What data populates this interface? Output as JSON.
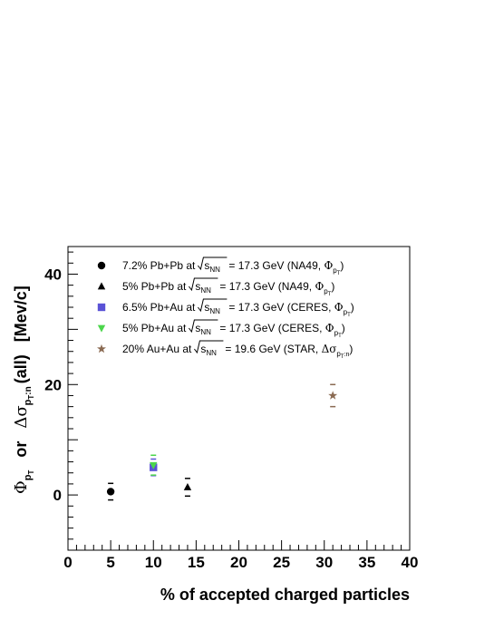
{
  "chart_data": {
    "type": "scatter",
    "xlabel": "% of accepted charged particles",
    "ylabel": "Φ_{p_T}   or   Δσ_{p_T:n}(all)   [Mev/c]",
    "xlim": [
      0,
      40
    ],
    "ylim": [
      -10,
      45
    ],
    "x_ticks": [
      0,
      5,
      10,
      15,
      20,
      25,
      30,
      35,
      40
    ],
    "y_ticks": [
      0,
      20,
      40
    ],
    "grid": false,
    "legend_position": "top-left",
    "series": [
      {
        "name": "7.2% Pb+Pb at √s_NN = 17.3 GeV (NA49, Φ_pT)",
        "marker": "circle",
        "color": "#000000",
        "points": [
          {
            "x": 5,
            "y": 0.6,
            "err": 1.5
          }
        ]
      },
      {
        "name": "5% Pb+Pb at √s_NN = 17.3 GeV (NA49, Φ_pT)",
        "marker": "triangle-up",
        "color": "#000000",
        "points": [
          {
            "x": 14,
            "y": 1.4,
            "err": 1.6
          }
        ]
      },
      {
        "name": "6.5% Pb+Au at √s_NN = 17.3 GeV (CERES, Φ_pT)",
        "marker": "square",
        "color": "#5a52d6",
        "points": [
          {
            "x": 10,
            "y": 5.0,
            "err": 1.5
          }
        ]
      },
      {
        "name": "5% Pb+Au at √s_NN = 17.3 GeV (CERES, Φ_pT)",
        "marker": "triangle-down",
        "color": "#4cd64c",
        "points": [
          {
            "x": 10,
            "y": 5.4,
            "err": 1.8
          }
        ]
      },
      {
        "name": "20% Au+Au at √s_NN = 19.6 GeV (STAR, Δσ_pT:n)",
        "marker": "star",
        "color": "#8a6a52",
        "points": [
          {
            "x": 31,
            "y": 18.0,
            "err": 2.0
          }
        ]
      }
    ],
    "legend": [
      {
        "prefix": "7.2% Pb+Pb at",
        "energy": "= 17.3 GeV (NA49,",
        "meas": "Φ",
        "sub": "p",
        "subsub": "T",
        "suffix": ")"
      },
      {
        "prefix": "5% Pb+Pb at",
        "energy": "= 17.3 GeV (NA49,",
        "meas": "Φ",
        "sub": "p",
        "subsub": "T",
        "suffix": ")"
      },
      {
        "prefix": "6.5% Pb+Au at",
        "energy": "= 17.3 GeV (CERES,",
        "meas": "Φ",
        "sub": "p",
        "subsub": "T",
        "suffix": ")"
      },
      {
        "prefix": "5% Pb+Au at",
        "energy": "= 17.3 GeV (CERES,",
        "meas": "Φ",
        "sub": "p",
        "subsub": "T",
        "suffix": ")"
      },
      {
        "prefix": "20% Au+Au at",
        "energy": "= 19.6 GeV (STAR,",
        "meas": "Δσ",
        "sub": "p",
        "subsub": "T",
        "subtail": ":n",
        "suffix": ")"
      }
    ],
    "sqrt_label": "s",
    "sqrt_sub": "NN",
    "ylabel_parts": {
      "phi": "Φ",
      "phi_sub": "p",
      "phi_subsub": "T",
      "or": "or",
      "delta": "Δσ",
      "delta_sub": "p",
      "delta_subsub": "T",
      "delta_subtail": ":n",
      "all": "(all)",
      "unit": "[Mev/c]"
    }
  }
}
